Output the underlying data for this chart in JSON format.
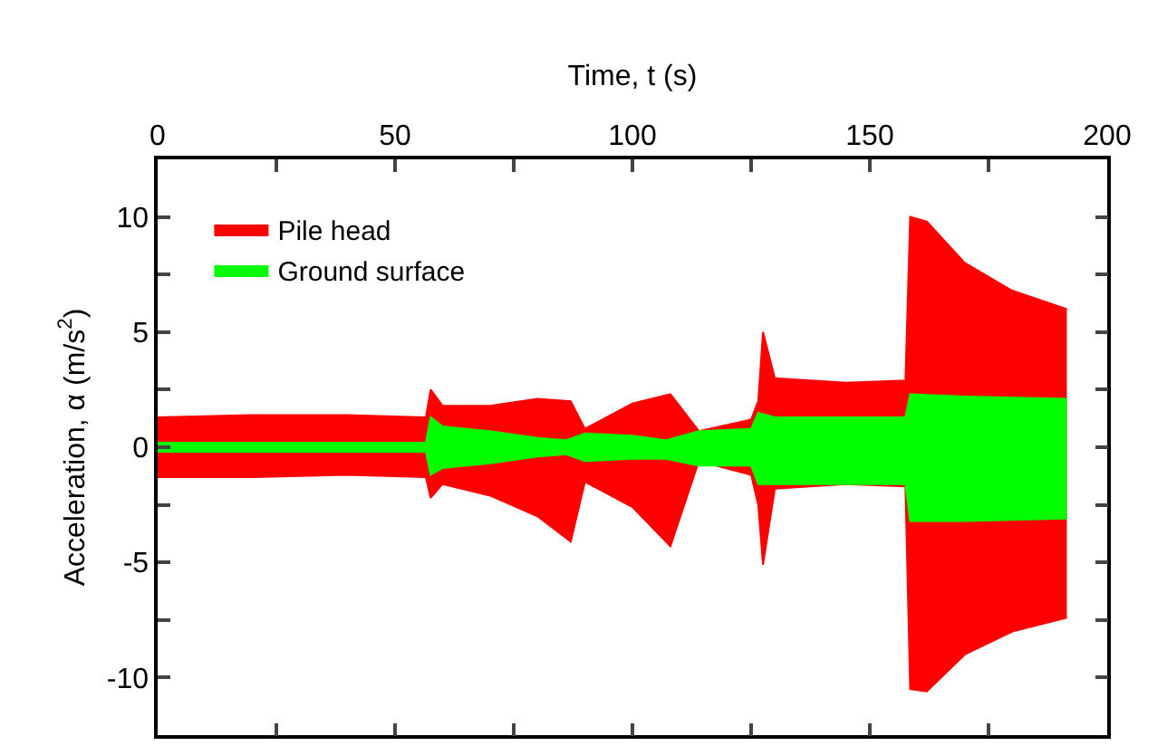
{
  "chart_data": {
    "type": "area",
    "xlabel": "Time, t (s)",
    "ylabel": "Acceleration, α (m/s$^{2}$)",
    "xlim": [
      0,
      200
    ],
    "xticks": [
      0,
      {
        "value": 25,
        "label": null
      },
      50,
      {
        "value": 75,
        "label": null
      },
      100,
      {
        "value": 125,
        "label": null
      },
      150,
      {
        "value": 175,
        "label": null
      },
      200
    ],
    "ylim": [
      -12.5,
      12.5
    ],
    "yticks": [
      {
        "value": -12.5,
        "label": null
      },
      -10,
      {
        "value": -7.5,
        "label": null
      },
      -5,
      {
        "value": -2.5,
        "label": null
      },
      0,
      {
        "value": 2.5,
        "label": null
      },
      5,
      {
        "value": 7.5,
        "label": null
      },
      10,
      {
        "value": 12.5,
        "label": null
      }
    ],
    "legend": "top left",
    "series": [
      {
        "name": "Pile head",
        "color": "#ff0000",
        "x": [
          0,
          20,
          40,
          56.5,
          57.5,
          60,
          70,
          80,
          87,
          90,
          100,
          108,
          114,
          125,
          126.5,
          127.5,
          130,
          145,
          157.5,
          158.5,
          162,
          170,
          180,
          191.5
        ],
        "values": [
          1.3,
          1.4,
          1.4,
          1.3,
          2.5,
          1.8,
          1.8,
          2.1,
          2.0,
          0.8,
          1.9,
          2.3,
          0.7,
          1.2,
          2.0,
          5.0,
          3.0,
          2.8,
          2.9,
          10.0,
          9.8,
          8.0,
          6.8,
          6.0
        ]
      },
      {
        "color": "#ff0000",
        "x": [
          0,
          20,
          40,
          56.5,
          57.5,
          60,
          70,
          80,
          87,
          90,
          100,
          108,
          114,
          125,
          126.5,
          127.5,
          130,
          145,
          157.5,
          158.5,
          162,
          170,
          180,
          191.5
        ],
        "values": [
          -1.3,
          -1.3,
          -1.2,
          -1.3,
          -2.2,
          -1.6,
          -2.1,
          -3.0,
          -4.1,
          -1.5,
          -2.6,
          -4.3,
          -0.6,
          -1.2,
          -2.5,
          -5.1,
          -1.8,
          -1.6,
          -1.7,
          -10.5,
          -10.6,
          -9.0,
          -8.0,
          -7.4
        ]
      },
      {
        "name": "Ground surface",
        "color": "#00ff00",
        "x": [
          0,
          56.5,
          57.5,
          60,
          70,
          80,
          86,
          90,
          100,
          107,
          114,
          125,
          126.5,
          130,
          157.5,
          158.5,
          170,
          191.5
        ],
        "values": [
          0.2,
          0.2,
          1.3,
          0.9,
          0.7,
          0.4,
          0.3,
          0.6,
          0.5,
          0.3,
          0.7,
          0.8,
          1.5,
          1.3,
          1.3,
          2.3,
          2.2,
          2.1
        ]
      },
      {
        "color": "#00ff00",
        "x": [
          0,
          56.5,
          57.5,
          60,
          70,
          80,
          86,
          90,
          100,
          107,
          114,
          125,
          126.5,
          130,
          157.5,
          158.5,
          170,
          191.5
        ],
        "values": [
          -0.2,
          -0.2,
          -1.2,
          -0.9,
          -0.7,
          -0.4,
          -0.3,
          -0.6,
          -0.5,
          -0.5,
          -0.8,
          -0.8,
          -1.6,
          -1.6,
          -1.6,
          -3.2,
          -3.2,
          -3.1
        ]
      }
    ]
  }
}
